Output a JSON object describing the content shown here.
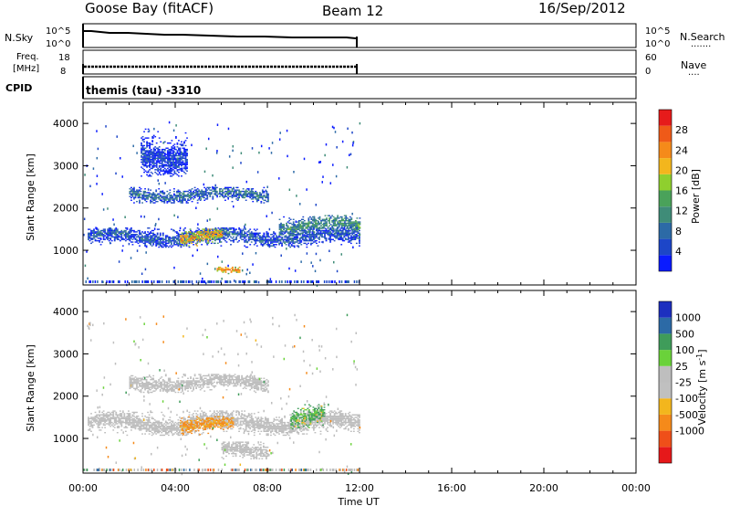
{
  "header": {
    "radar": "Goose Bay (fitACF)",
    "beam": "Beam 12",
    "date": "16/Sep/2012"
  },
  "colors": {
    "background": "#ffffff",
    "axes": "#000000",
    "groundscatter": "#bdbdbd",
    "power_scale": [
      "#0a1bff",
      "#1d46c8",
      "#2c6aa6",
      "#3f8c78",
      "#4aa25a",
      "#8fcf2e",
      "#f3b61d",
      "#f58a1a",
      "#ef5a18",
      "#e61b1b"
    ],
    "velocity_scale": [
      "#e6181a",
      "#ef4f19",
      "#f58a1a",
      "#f3b61d",
      "#c0c0c0",
      "#bebebe",
      "#6ad23a",
      "#3f9c5a",
      "#2c6aa6",
      "#1d2fbf"
    ]
  },
  "top_panels": {
    "nsky": {
      "label": "N.Sky",
      "ticks_left": [
        "10^5",
        "10^0"
      ],
      "ticks_right": [
        "10^5",
        "10^0"
      ],
      "right_label": "N.Search",
      "right_dots": "......."
    },
    "freq": {
      "label_line1": "Freq.",
      "label_line2": "[MHz]",
      "ticks_left": [
        "18",
        "8"
      ],
      "ticks_right": [
        "60",
        "0"
      ],
      "right_label": "Nave",
      "right_dots": "...."
    },
    "cpid": {
      "label": "CPID",
      "value": "themis (tau) -3310"
    }
  },
  "chart_data": [
    {
      "type": "heatmap",
      "title": "",
      "ylabel": "Slant Range [km]",
      "xlabel": "",
      "xlim_hours": [
        0,
        24
      ],
      "ylim_km": [
        180,
        4500
      ],
      "ytick_labels": [
        "1000",
        "2000",
        "3000",
        "4000"
      ],
      "ytick_values": [
        1000,
        2000,
        3000,
        4000
      ],
      "colorbar": {
        "label": "Power [dB]",
        "tick_labels": [
          "4",
          "8",
          "12",
          "16",
          "20",
          "24",
          "28"
        ],
        "range": [
          0,
          32
        ]
      },
      "data_end_hour": 12.0,
      "scatter_regions": [
        {
          "t0": 0.2,
          "t1": 12.0,
          "r_center": 1300,
          "r_halfwidth": 150,
          "value": 7
        },
        {
          "t0": 2.0,
          "t1": 8.0,
          "r_center": 2300,
          "r_halfwidth": 120,
          "value": 9
        },
        {
          "t0": 8.5,
          "t1": 12.0,
          "r_center": 1550,
          "r_halfwidth": 160,
          "value": 12
        },
        {
          "t0": 4.2,
          "t1": 6.0,
          "r_center": 1300,
          "r_halfwidth": 130,
          "value": 22
        },
        {
          "t0": 5.8,
          "t1": 6.8,
          "r_center": 500,
          "r_halfwidth": 60,
          "value": 24
        },
        {
          "t0": 2.5,
          "t1": 4.5,
          "r_center": 3300,
          "r_halfwidth": 350,
          "value": 5
        }
      ]
    },
    {
      "type": "heatmap",
      "title": "",
      "ylabel": "Slant Range [km]",
      "xlabel": "Time UT",
      "xlim_hours": [
        0,
        24
      ],
      "ylim_km": [
        180,
        4500
      ],
      "xtick_labels": [
        "00:00",
        "04:00",
        "08:00",
        "12:00",
        "16:00",
        "20:00",
        "00:00"
      ],
      "ytick_labels": [
        "1000",
        "2000",
        "3000",
        "4000"
      ],
      "ytick_values": [
        1000,
        2000,
        3000,
        4000
      ],
      "colorbar": {
        "label": "Velocity [m s-1]",
        "tick_labels": [
          "1000",
          "500",
          "100",
          "25",
          "-25",
          "-100",
          "-500",
          "-1000"
        ]
      },
      "data_end_hour": 12.0,
      "scatter_regions": [
        {
          "t0": 0.2,
          "t1": 12.0,
          "r_center": 1350,
          "r_halfwidth": 180,
          "value": 0,
          "groundscatter": true
        },
        {
          "t0": 2.0,
          "t1": 8.0,
          "r_center": 2300,
          "r_halfwidth": 140,
          "value": 0,
          "groundscatter": true
        },
        {
          "t0": 4.2,
          "t1": 6.5,
          "r_center": 1300,
          "r_halfwidth": 140,
          "value": -150
        },
        {
          "t0": 9.0,
          "t1": 10.5,
          "r_center": 1500,
          "r_halfwidth": 180,
          "value": 100
        },
        {
          "t0": 6.0,
          "t1": 8.0,
          "r_center": 700,
          "r_halfwidth": 140,
          "value": 0,
          "groundscatter": true
        }
      ]
    }
  ]
}
